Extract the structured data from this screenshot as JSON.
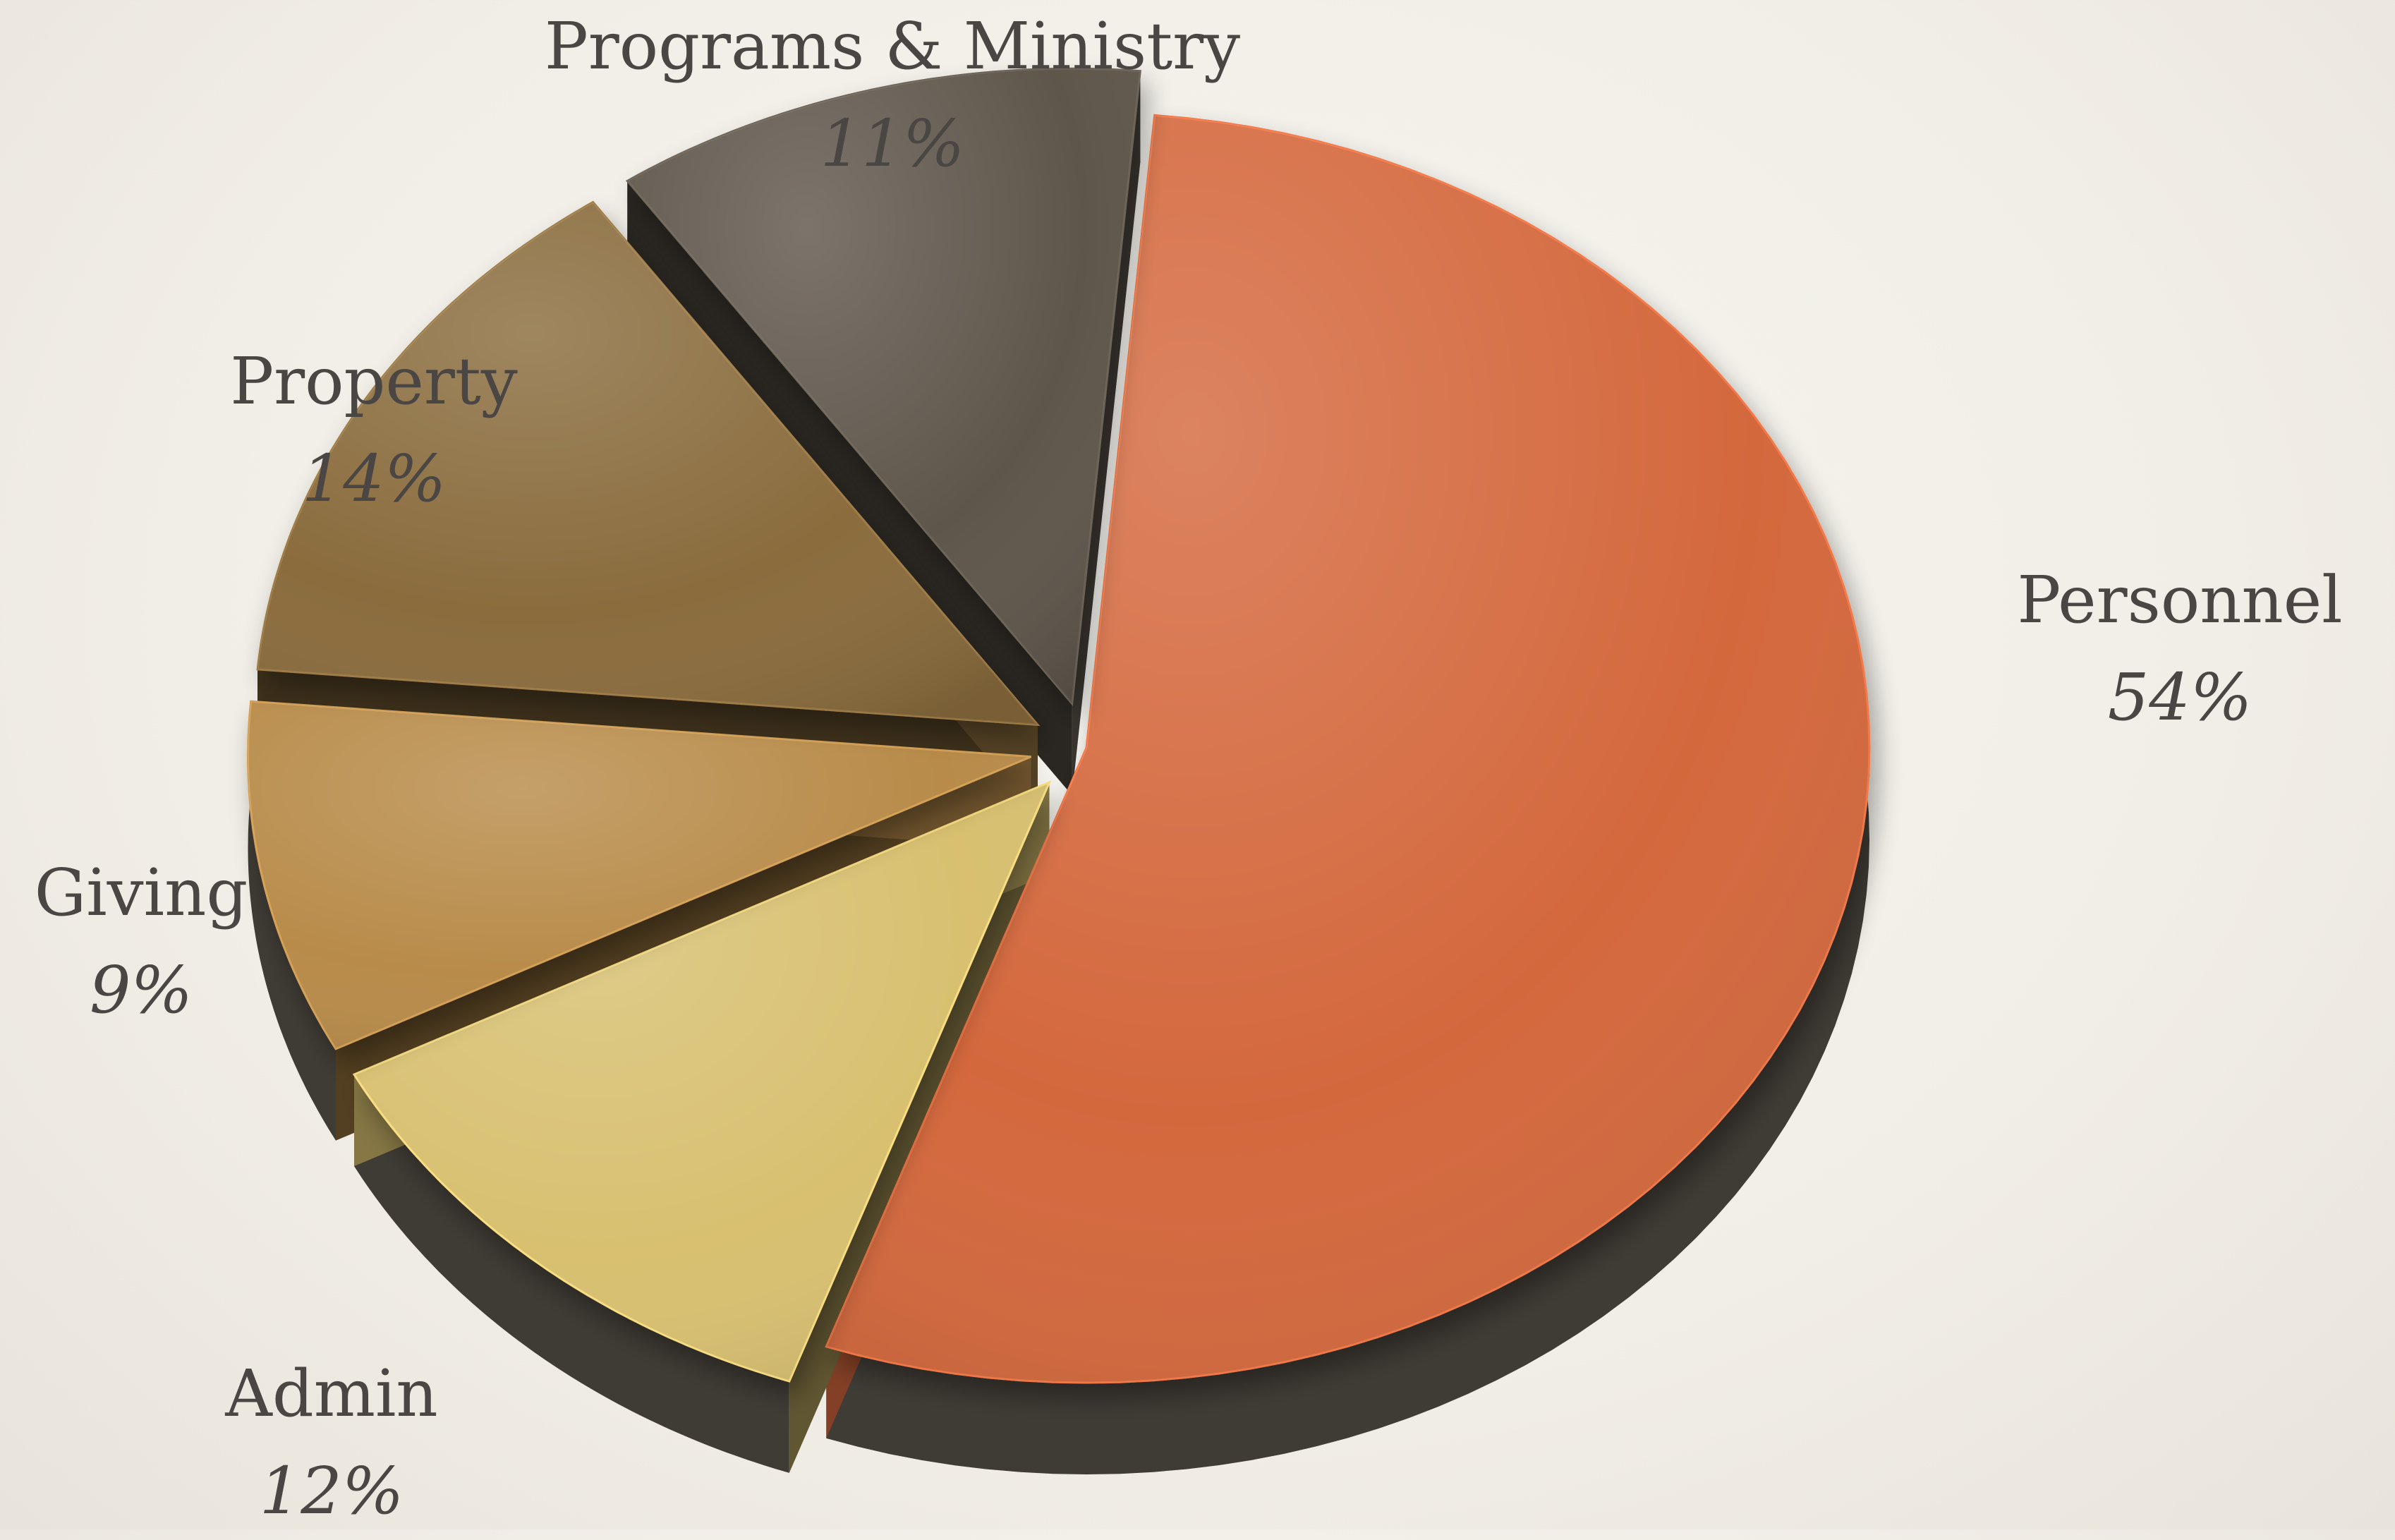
{
  "chart_data": {
    "type": "pie",
    "style": "3d-exploded",
    "title": "",
    "slices": [
      {
        "label": "Personnel",
        "value": 54,
        "value_label": "54%",
        "color": "#d4683e",
        "exploded": false
      },
      {
        "label": "Admin",
        "value": 12,
        "value_label": "12%",
        "color": "#d8c070",
        "exploded": true
      },
      {
        "label": "Giving",
        "value": 9,
        "value_label": "9%",
        "color": "#b88b4a",
        "exploded": true
      },
      {
        "label": "Property",
        "value": 14,
        "value_label": "14%",
        "color": "#8a6c3e",
        "exploded": true
      },
      {
        "label": "Programs & Ministry",
        "value": 11,
        "value_label": "11%",
        "color": "#5e564c",
        "exploded": true
      }
    ],
    "side_color": "#3f3b35",
    "legend": "none"
  }
}
